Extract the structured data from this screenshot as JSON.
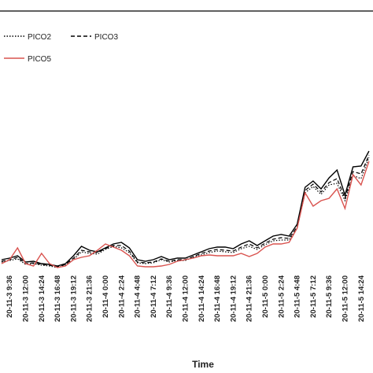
{
  "chart_data": {
    "type": "line",
    "x_label": "Time",
    "categories": [
      null,
      "20-11-3 9:36",
      null,
      "20-11-3 12:00",
      null,
      "20-11-3 14:24",
      null,
      "20-11-3 16:48",
      null,
      "20-11-3 19:12",
      null,
      "20-11-3 21:36",
      null,
      "20-11-4 0:00",
      null,
      "20-11-4 2:24",
      null,
      "20-11-4 4:48",
      null,
      "20-11-4 7:12",
      null,
      "20-11-4 9:36",
      null,
      "20-11-4 12:00",
      null,
      "20-11-4 14:24",
      null,
      "20-11-4 16:48",
      null,
      "20-11-4 19:12",
      null,
      "20-11-4 21:36",
      null,
      "20-11-5 0:00",
      null,
      "20-11-5 2:24",
      null,
      "20-11-5 4:48",
      null,
      "20-11-5 7:12",
      null,
      "20-11-5 9:36",
      null,
      "20-11-5 12:00",
      null,
      "20-11-5 14:24",
      null
    ],
    "ylim": [
      0,
      331
    ],
    "legend": "top-left",
    "series": [
      {
        "color": "#000000",
        "dash": "solid",
        "values": [
          15,
          17,
          20,
          12,
          13,
          10,
          9,
          7,
          10,
          20,
          32,
          27,
          25,
          30,
          35,
          37,
          30,
          15,
          13,
          15,
          19,
          15,
          17,
          17,
          21,
          25,
          29,
          31,
          31,
          29,
          35,
          39,
          33,
          39,
          45,
          47,
          45,
          60,
          107,
          115,
          105,
          119,
          129,
          97,
          133,
          134,
          153
        ]
      },
      {
        "name": "PICO2",
        "color": "#000000",
        "dash": "dotted",
        "values": [
          12,
          14,
          16,
          9,
          10,
          8,
          7,
          5,
          8,
          15,
          25,
          23,
          22,
          28,
          32,
          30,
          24,
          11,
          10,
          11,
          15,
          12,
          14,
          14,
          18,
          21,
          24,
          26,
          25,
          24,
          29,
          32,
          28,
          34,
          39,
          40,
          40,
          55,
          100,
          108,
          98,
          110,
          112,
          90,
          122,
          118,
          145
        ]
      },
      {
        "name": "PICO3",
        "color": "#000000",
        "dash": "dashed",
        "values": [
          13,
          15,
          18,
          10,
          11,
          9,
          8,
          6,
          9,
          17,
          27,
          25,
          24,
          29,
          33,
          33,
          26,
          12,
          11,
          12,
          16,
          13,
          15,
          15,
          19,
          23,
          26,
          28,
          27,
          26,
          31,
          35,
          30,
          36,
          41,
          43,
          42,
          57,
          103,
          111,
          101,
          113,
          118,
          93,
          127,
          124,
          148
        ]
      },
      {
        "name": "PICO5",
        "color": "#d9534f",
        "dash": "solid",
        "values": [
          10,
          15,
          30,
          10,
          7,
          23,
          10,
          5,
          7,
          15,
          18,
          20,
          27,
          35,
          31,
          27,
          20,
          7,
          6,
          6,
          7,
          9,
          13,
          15,
          17,
          20,
          21,
          20,
          20,
          20,
          23,
          19,
          23,
          31,
          35,
          35,
          37,
          55,
          100,
          83,
          90,
          93,
          105,
          80,
          123,
          110,
          140
        ]
      }
    ]
  }
}
